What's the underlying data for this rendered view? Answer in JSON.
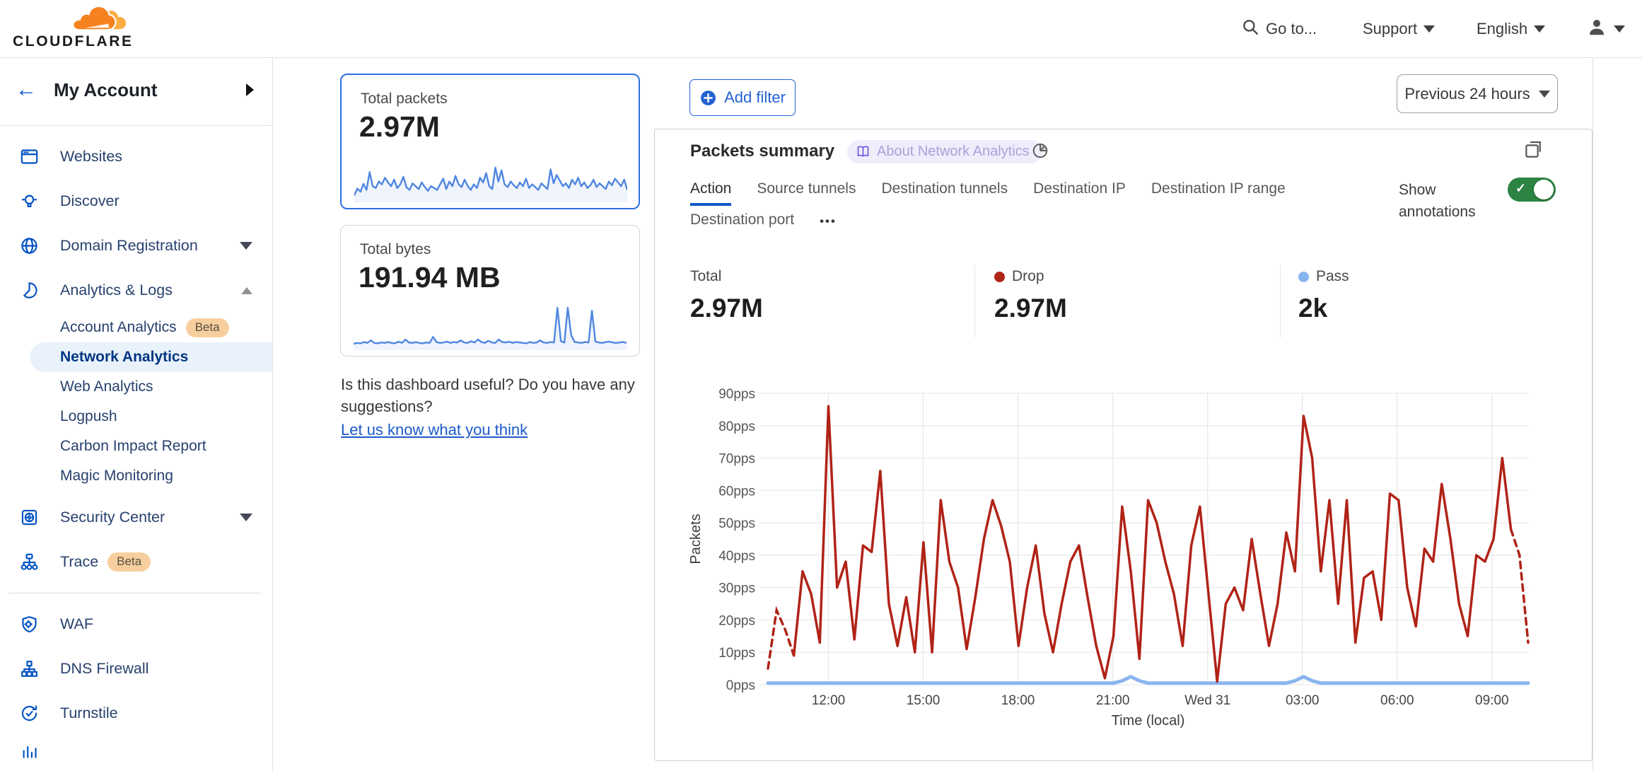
{
  "topbar": {
    "logo_text": "CLOUDFLARE",
    "goto": "Go to...",
    "support": "Support",
    "language": "English"
  },
  "sidebar": {
    "account_label": "My Account",
    "sections": [
      {
        "items": [
          {
            "label": "Websites",
            "icon": "browser-icon"
          },
          {
            "label": "Discover",
            "icon": "lightbulb-icon"
          },
          {
            "label": "Domain Registration",
            "icon": "globe-icon",
            "caret": "down"
          },
          {
            "label": "Analytics & Logs",
            "icon": "pie-icon",
            "caret": "up",
            "children": [
              {
                "label": "Account Analytics",
                "badge": "Beta"
              },
              {
                "label": "Network Analytics",
                "active": true
              },
              {
                "label": "Web Analytics"
              },
              {
                "label": "Logpush"
              },
              {
                "label": "Carbon Impact Report"
              },
              {
                "label": "Magic Monitoring"
              }
            ]
          },
          {
            "label": "Security Center",
            "icon": "safe-icon",
            "caret": "down"
          },
          {
            "label": "Trace",
            "icon": "trace-icon",
            "badge": "Beta"
          }
        ]
      },
      {
        "items": [
          {
            "label": "WAF",
            "icon": "shield-icon"
          },
          {
            "label": "DNS Firewall",
            "icon": "hierarchy-icon"
          },
          {
            "label": "Turnstile",
            "icon": "refresh-check-icon"
          }
        ]
      }
    ]
  },
  "metrics": {
    "packets": {
      "label": "Total packets",
      "value": "2.97M",
      "sparkline": [
        10,
        25,
        18,
        35,
        22,
        60,
        30,
        26,
        40,
        34,
        48,
        38,
        30,
        44,
        26,
        34,
        50,
        28,
        22,
        36,
        30,
        24,
        38,
        28,
        20,
        30,
        26,
        22,
        34,
        46,
        24,
        40,
        30,
        52,
        34,
        28,
        44,
        30,
        22,
        34,
        26,
        48,
        38,
        58,
        30,
        24,
        70,
        40,
        64,
        34,
        28,
        40,
        32,
        26,
        38,
        30,
        46,
        26,
        34,
        28,
        22,
        36,
        30,
        24,
        66,
        36,
        54,
        42,
        30,
        36,
        26,
        44,
        34,
        48,
        30,
        38,
        26,
        32,
        44,
        28,
        36,
        30,
        24,
        40,
        32,
        46,
        38,
        30,
        44,
        22
      ]
    },
    "bytes": {
      "label": "Total bytes",
      "value": "191.94 MB",
      "sparkline": [
        10,
        12,
        11,
        14,
        12,
        18,
        12,
        11,
        13,
        12,
        14,
        12,
        11,
        15,
        12,
        20,
        13,
        12,
        14,
        12,
        11,
        13,
        12,
        26,
        14,
        12,
        13,
        15,
        12,
        14,
        13,
        18,
        13,
        12,
        16,
        13,
        20,
        14,
        12,
        17,
        13,
        12,
        20,
        14,
        13,
        15,
        12,
        14,
        13,
        12,
        11,
        14,
        12,
        13,
        18,
        13,
        12,
        14,
        13,
        95,
        16,
        13,
        95,
        30,
        14,
        13,
        12,
        14,
        13,
        88,
        15,
        13,
        12,
        14,
        15,
        13,
        12,
        13,
        14,
        12
      ]
    },
    "feedback": {
      "question": "Is this dashboard useful? Do you have any suggestions?",
      "link": "Let us know what you think"
    }
  },
  "toolbar": {
    "add_filter": "Add filter",
    "time_range": "Previous 24 hours"
  },
  "panel": {
    "title": "Packets summary",
    "about_badge": "About Network Analytics",
    "tabs": [
      "Action",
      "Source tunnels",
      "Destination tunnels",
      "Destination IP",
      "Destination IP range",
      "Destination port"
    ],
    "active_tab": "Action",
    "more_tabs": "•••",
    "show_annotations": "Show annotations",
    "stats": [
      {
        "label": "Total",
        "value": "2.97M"
      },
      {
        "label": "Drop",
        "value": "2.97M",
        "dot": "#b02317"
      },
      {
        "label": "Pass",
        "value": "2k",
        "dot": "#8ab5ef"
      }
    ]
  },
  "chart_data": {
    "type": "line",
    "title": "Packets summary",
    "xlabel": "Time (local)",
    "ylabel": "Packets",
    "ylim": [
      0,
      90
    ],
    "y_ticks": [
      0,
      10,
      20,
      30,
      40,
      50,
      60,
      70,
      80,
      90
    ],
    "y_unit": "pps",
    "x_tick_labels": [
      "12:00",
      "15:00",
      "18:00",
      "21:00",
      "Wed 31",
      "03:00",
      "06:00",
      "09:00"
    ],
    "first_tick_fraction": 0.0795,
    "tick_step_fraction": 0.1247,
    "grid": true,
    "legend_position": "top",
    "series": [
      {
        "name": "Drop",
        "color": "#b02317",
        "dashed_head_points": 4,
        "dashed_tail_points": 3,
        "values": [
          5,
          23,
          17,
          9,
          35,
          28,
          13,
          86,
          30,
          38,
          14,
          43,
          41,
          66,
          25,
          12,
          27,
          10,
          44,
          10,
          57,
          38,
          30,
          11,
          27,
          45,
          57,
          49,
          38,
          12,
          30,
          43,
          22,
          10,
          25,
          38,
          43,
          27,
          12,
          2,
          15,
          55,
          35,
          8,
          57,
          50,
          38,
          28,
          12,
          43,
          55,
          28,
          1,
          25,
          30,
          23,
          45,
          28,
          12,
          25,
          47,
          35,
          83,
          70,
          35,
          57,
          25,
          57,
          13,
          33,
          35,
          20,
          59,
          57,
          30,
          18,
          42,
          38,
          62,
          45,
          25,
          15,
          40,
          38,
          45,
          70,
          48,
          40,
          13
        ]
      },
      {
        "name": "Pass",
        "color": "#8ab5ef",
        "values": [
          0.5,
          0.5,
          0.5,
          0.5,
          0.5,
          0.5,
          0.5,
          0.5,
          0.5,
          0.5,
          0.5,
          0.5,
          0.5,
          0.5,
          0.5,
          0.5,
          0.5,
          0.5,
          0.5,
          0.5,
          0.5,
          0.5,
          0.5,
          0.5,
          0.5,
          0.5,
          0.5,
          0.5,
          0.5,
          0.5,
          0.5,
          0.5,
          0.5,
          0.5,
          0.5,
          0.5,
          0.5,
          0.5,
          0.5,
          0.5,
          0.5,
          1.2,
          2.5,
          1.2,
          0.5,
          0.5,
          0.5,
          0.5,
          0.5,
          0.5,
          0.5,
          0.5,
          0.5,
          0.5,
          0.5,
          0.5,
          0.5,
          0.5,
          0.5,
          0.5,
          0.5,
          1.2,
          2.5,
          1.2,
          0.5,
          0.5,
          0.5,
          0.5,
          0.5,
          0.5,
          0.5,
          0.5,
          0.5,
          0.5,
          0.5,
          0.5,
          0.5,
          0.5,
          0.5,
          0.5,
          0.5,
          0.5,
          0.5,
          0.5,
          0.5,
          0.5,
          0.5,
          0.5,
          0.5
        ]
      }
    ]
  },
  "colors": {
    "accent_blue": "#0051c3",
    "selected_card_border": "#2f6fe0",
    "drop_red": "#b02317",
    "pass_blue": "#8ab5ef",
    "toggle_green": "#2c8342",
    "beta_badge_bg": "#f7cf9f",
    "about_badge_bg": "#efecfc",
    "active_pill_bg": "#e9f2fb"
  }
}
